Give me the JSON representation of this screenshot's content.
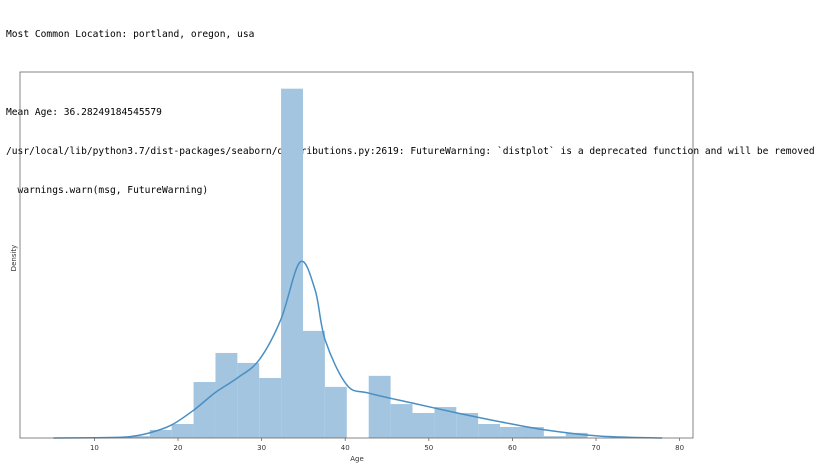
{
  "console": {
    "lines": [
      "Most Common Location: portland, oregon, usa",
      "Mean Age: 36.28249184545579",
      "/usr/local/lib/python3.7/dist-packages/seaborn/distributions.py:2619: FutureWarning: `distplot` is a deprecated function and will be removed",
      "  warnings.warn(msg, FutureWarning)"
    ]
  },
  "chart_data": {
    "type": "histogram",
    "xlabel": "Age",
    "ylabel": "Density",
    "bins": [
      14,
      16.62,
      19.24,
      21.86,
      24.48,
      27.1,
      29.71,
      32.33,
      34.95,
      37.57,
      40.19,
      42.81,
      45.43,
      48.05,
      50.67,
      53.29,
      55.9,
      58.52,
      61.14,
      63.76,
      66.38,
      69
    ],
    "values": [
      0.0007,
      0.003,
      0.0052,
      0.0208,
      0.0316,
      0.0279,
      0.0223,
      0.1298,
      0.0398,
      0.019,
      0,
      0.0231,
      0.0126,
      0.0093,
      0.0115,
      0.0093,
      0.0052,
      0.0041,
      0.0041,
      0.0007,
      0.0019
    ],
    "color": "#a3c5df",
    "kde": {
      "color": "#4a8fc4",
      "x": [
        5.1,
        10,
        14,
        16.6,
        19.2,
        21.9,
        24.5,
        27.1,
        29.7,
        32.3,
        34.6,
        36.4,
        37.6,
        40.2,
        42.8,
        48,
        53.4,
        58.6,
        63.9,
        70.5,
        77.9
      ],
      "y": [
        0,
        0.0001,
        0.0004,
        0.0019,
        0.0048,
        0.0104,
        0.017,
        0.0223,
        0.029,
        0.044,
        0.0654,
        0.055,
        0.0364,
        0.0197,
        0.0167,
        0.013,
        0.0093,
        0.006,
        0.003,
        0.0007,
        0
      ]
    },
    "xlim": [
      1.1,
      81.6
    ],
    "ylim": [
      0,
      0.136
    ],
    "xticks": [
      10,
      20,
      30,
      40,
      50,
      60,
      70,
      80
    ]
  }
}
